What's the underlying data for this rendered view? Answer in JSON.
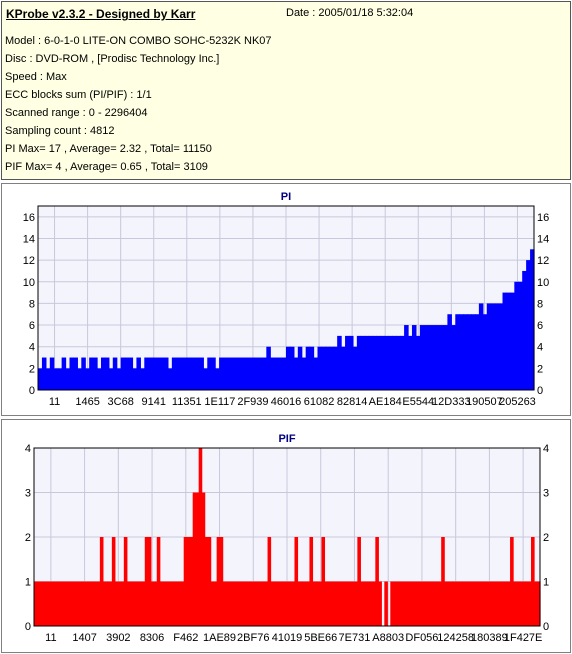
{
  "info": {
    "title": "KProbe v2.3.2 - Designed by Karr",
    "date": "Date : 2005/01/18 5:32:04",
    "lines": [
      "Model : 6-0-1-0 LITE-ON COMBO SOHC-5232K NK07",
      "Disc : DVD-ROM ,  [Prodisc Technology Inc.]",
      "Speed : Max",
      "ECC blocks sum (PI/PIF) : 1/1",
      "Scanned range : 0 - 2296404",
      "Sampling count : 4812",
      "PI Max= 17 , Average= 2.32 , Total= 11150",
      "PIF Max= 4 , Average= 0.65 , Total= 3109"
    ]
  },
  "colors": {
    "pi": "#0000ff",
    "pif": "#ff0000",
    "plot_bg": "#f4f4fc",
    "grid": "#c8c8dc"
  },
  "chart_data": [
    {
      "type": "bar",
      "title": "PI",
      "ylim": [
        0,
        17
      ],
      "yticks": [
        "0",
        "2",
        "4",
        "6",
        "8",
        "10",
        "12",
        "14",
        "16"
      ],
      "xticks": [
        "11",
        "1465",
        "3C68",
        "9141",
        "11351",
        "1E117",
        "2F939",
        "46016",
        "61082",
        "82814",
        "AE184",
        "E5544",
        "12D333",
        "190507",
        "205263"
      ],
      "grid": true,
      "series": [
        {
          "values": [
            2,
            3,
            2,
            3,
            2,
            2,
            3,
            2,
            3,
            3,
            2,
            3,
            2,
            3,
            3,
            2,
            3,
            3,
            2,
            3,
            2,
            3,
            3,
            3,
            2,
            3,
            2,
            3,
            3,
            3,
            3,
            3,
            3,
            2,
            3,
            3,
            3,
            3,
            3,
            3,
            3,
            3,
            2,
            3,
            3,
            2,
            3,
            3,
            3,
            3,
            3,
            3,
            3,
            3,
            3,
            3,
            3,
            3,
            4,
            3,
            3,
            3,
            3,
            4,
            4,
            3,
            4,
            3,
            4,
            4,
            3,
            4,
            4,
            4,
            4,
            4,
            5,
            4,
            5,
            5,
            4,
            5,
            5,
            5,
            5,
            5,
            5,
            5,
            5,
            5,
            5,
            5,
            5,
            6,
            5,
            6,
            5,
            6,
            6,
            6,
            6,
            6,
            6,
            6,
            7,
            6,
            7,
            7,
            7,
            7,
            7,
            7,
            8,
            7,
            8,
            8,
            8,
            8,
            9,
            9,
            9,
            10,
            10,
            11,
            12,
            13
          ]
        }
      ]
    },
    {
      "type": "bar",
      "title": "PIF",
      "ylim": [
        0,
        4
      ],
      "yticks": [
        "0",
        "1",
        "2",
        "3",
        "4"
      ],
      "xticks": [
        "11",
        "1407",
        "3902",
        "8306",
        "F462",
        "1AE89",
        "2BF76",
        "41019",
        "5BE66",
        "7E731",
        "A8803",
        "DF056",
        "124258",
        "180389",
        "1F427E"
      ],
      "grid": true,
      "series": [
        {
          "values": [
            1,
            1,
            1,
            1,
            1,
            1,
            1,
            1,
            1,
            1,
            1,
            1,
            1,
            1,
            1,
            1,
            1,
            1,
            1,
            1,
            1,
            1,
            2,
            1,
            1,
            1,
            2,
            1,
            1,
            1,
            2,
            1,
            1,
            1,
            1,
            1,
            1,
            2,
            2,
            1,
            1,
            2,
            1,
            1,
            1,
            1,
            1,
            1,
            1,
            1,
            2,
            2,
            2,
            3,
            3,
            4,
            3,
            2,
            2,
            1,
            1,
            2,
            2,
            1,
            1,
            1,
            1,
            1,
            1,
            1,
            1,
            1,
            1,
            1,
            1,
            1,
            1,
            1,
            2,
            1,
            1,
            1,
            1,
            1,
            1,
            1,
            1,
            2,
            1,
            1,
            1,
            1,
            2,
            1,
            1,
            1,
            2,
            1,
            1,
            1,
            1,
            1,
            1,
            1,
            1,
            1,
            1,
            1,
            2,
            1,
            1,
            1,
            1,
            1,
            2,
            1,
            0,
            1,
            0,
            1,
            1,
            1,
            1,
            1,
            1,
            1,
            1,
            1,
            1,
            1,
            1,
            1,
            1,
            1,
            1,
            1,
            2,
            1,
            1,
            1,
            1,
            1,
            1,
            1,
            1,
            1,
            1,
            1,
            1,
            1,
            1,
            1,
            1,
            1,
            1,
            1,
            1,
            1,
            1,
            2,
            1,
            1,
            1,
            1,
            1,
            1,
            2,
            1,
            1
          ]
        }
      ]
    }
  ]
}
